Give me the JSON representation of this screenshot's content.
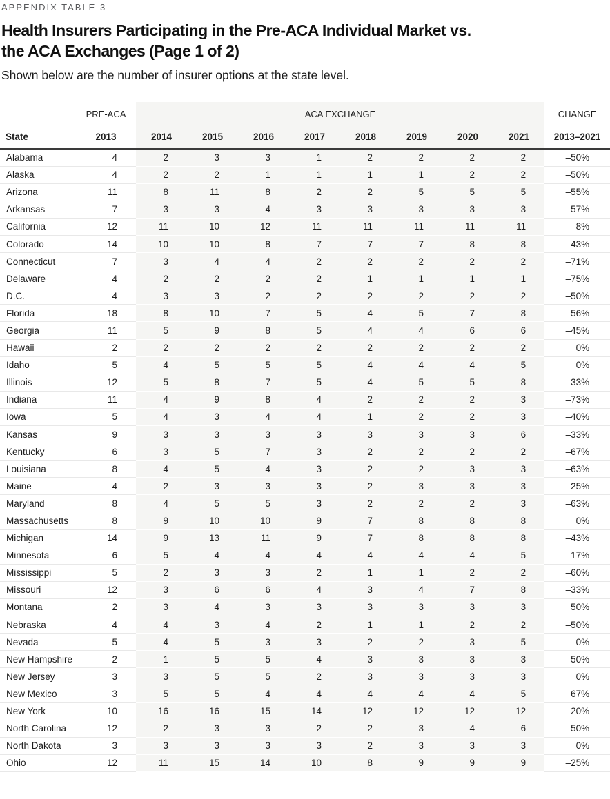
{
  "header": {
    "eyebrow": "APPENDIX TABLE 3",
    "title_line1": "Health Insurers Participating in the Pre-ACA Individual Market vs.",
    "title_line2": "the ACA Exchanges (Page 1 of 2)",
    "subtitle": "Shown below are the number of insurer options at the state level."
  },
  "colors": {
    "band_background": "#f5f5f3",
    "row_divider": "#e8e8e8",
    "header_rule": "#3a3a3a",
    "eyebrow_text": "#58595b"
  },
  "table": {
    "group_headers": {
      "pre_aca": "PRE-ACA",
      "aca_exchange": "ACA EXCHANGE",
      "change": "CHANGE"
    },
    "columns": {
      "state": "State",
      "pre_aca_year": "2013",
      "aca_years": [
        "2014",
        "2015",
        "2016",
        "2017",
        "2018",
        "2019",
        "2020",
        "2021"
      ],
      "change_range": "2013–2021"
    },
    "rows": [
      {
        "state": "Alabama",
        "pre_aca": "4",
        "aca": [
          "2",
          "3",
          "3",
          "1",
          "2",
          "2",
          "2",
          "2"
        ],
        "change": "–50%"
      },
      {
        "state": "Alaska",
        "pre_aca": "4",
        "aca": [
          "2",
          "2",
          "1",
          "1",
          "1",
          "1",
          "2",
          "2"
        ],
        "change": "–50%"
      },
      {
        "state": "Arizona",
        "pre_aca": "11",
        "aca": [
          "8",
          "11",
          "8",
          "2",
          "2",
          "5",
          "5",
          "5"
        ],
        "change": "–55%"
      },
      {
        "state": "Arkansas",
        "pre_aca": "7",
        "aca": [
          "3",
          "3",
          "4",
          "3",
          "3",
          "3",
          "3",
          "3"
        ],
        "change": "–57%"
      },
      {
        "state": "California",
        "pre_aca": "12",
        "aca": [
          "11",
          "10",
          "12",
          "11",
          "11",
          "11",
          "11",
          "11"
        ],
        "change": "–8%"
      },
      {
        "state": "Colorado",
        "pre_aca": "14",
        "aca": [
          "10",
          "10",
          "8",
          "7",
          "7",
          "7",
          "8",
          "8"
        ],
        "change": "–43%"
      },
      {
        "state": "Connecticut",
        "pre_aca": "7",
        "aca": [
          "3",
          "4",
          "4",
          "2",
          "2",
          "2",
          "2",
          "2"
        ],
        "change": "–71%"
      },
      {
        "state": "Delaware",
        "pre_aca": "4",
        "aca": [
          "2",
          "2",
          "2",
          "2",
          "1",
          "1",
          "1",
          "1"
        ],
        "change": "–75%"
      },
      {
        "state": "D.C.",
        "pre_aca": "4",
        "aca": [
          "3",
          "3",
          "2",
          "2",
          "2",
          "2",
          "2",
          "2"
        ],
        "change": "–50%"
      },
      {
        "state": "Florida",
        "pre_aca": "18",
        "aca": [
          "8",
          "10",
          "7",
          "5",
          "4",
          "5",
          "7",
          "8"
        ],
        "change": "–56%"
      },
      {
        "state": "Georgia",
        "pre_aca": "11",
        "aca": [
          "5",
          "9",
          "8",
          "5",
          "4",
          "4",
          "6",
          "6"
        ],
        "change": "–45%"
      },
      {
        "state": "Hawaii",
        "pre_aca": "2",
        "aca": [
          "2",
          "2",
          "2",
          "2",
          "2",
          "2",
          "2",
          "2"
        ],
        "change": "0%"
      },
      {
        "state": "Idaho",
        "pre_aca": "5",
        "aca": [
          "4",
          "5",
          "5",
          "5",
          "4",
          "4",
          "4",
          "5"
        ],
        "change": "0%"
      },
      {
        "state": "Illinois",
        "pre_aca": "12",
        "aca": [
          "5",
          "8",
          "7",
          "5",
          "4",
          "5",
          "5",
          "8"
        ],
        "change": "–33%"
      },
      {
        "state": "Indiana",
        "pre_aca": "11",
        "aca": [
          "4",
          "9",
          "8",
          "4",
          "2",
          "2",
          "2",
          "3"
        ],
        "change": "–73%"
      },
      {
        "state": "Iowa",
        "pre_aca": "5",
        "aca": [
          "4",
          "3",
          "4",
          "4",
          "1",
          "2",
          "2",
          "3"
        ],
        "change": "–40%"
      },
      {
        "state": "Kansas",
        "pre_aca": "9",
        "aca": [
          "3",
          "3",
          "3",
          "3",
          "3",
          "3",
          "3",
          "6"
        ],
        "change": "–33%"
      },
      {
        "state": "Kentucky",
        "pre_aca": "6",
        "aca": [
          "3",
          "5",
          "7",
          "3",
          "2",
          "2",
          "2",
          "2"
        ],
        "change": "–67%"
      },
      {
        "state": "Louisiana",
        "pre_aca": "8",
        "aca": [
          "4",
          "5",
          "4",
          "3",
          "2",
          "2",
          "3",
          "3"
        ],
        "change": "–63%"
      },
      {
        "state": "Maine",
        "pre_aca": "4",
        "aca": [
          "2",
          "3",
          "3",
          "3",
          "2",
          "3",
          "3",
          "3"
        ],
        "change": "–25%"
      },
      {
        "state": "Maryland",
        "pre_aca": "8",
        "aca": [
          "4",
          "5",
          "5",
          "3",
          "2",
          "2",
          "2",
          "3"
        ],
        "change": "–63%"
      },
      {
        "state": "Massachusetts",
        "pre_aca": "8",
        "aca": [
          "9",
          "10",
          "10",
          "9",
          "7",
          "8",
          "8",
          "8"
        ],
        "change": "0%"
      },
      {
        "state": "Michigan",
        "pre_aca": "14",
        "aca": [
          "9",
          "13",
          "11",
          "9",
          "7",
          "8",
          "8",
          "8"
        ],
        "change": "–43%"
      },
      {
        "state": "Minnesota",
        "pre_aca": "6",
        "aca": [
          "5",
          "4",
          "4",
          "4",
          "4",
          "4",
          "4",
          "5"
        ],
        "change": "–17%"
      },
      {
        "state": "Mississippi",
        "pre_aca": "5",
        "aca": [
          "2",
          "3",
          "3",
          "2",
          "1",
          "1",
          "2",
          "2"
        ],
        "change": "–60%"
      },
      {
        "state": "Missouri",
        "pre_aca": "12",
        "aca": [
          "3",
          "6",
          "6",
          "4",
          "3",
          "4",
          "7",
          "8"
        ],
        "change": "–33%"
      },
      {
        "state": "Montana",
        "pre_aca": "2",
        "aca": [
          "3",
          "4",
          "3",
          "3",
          "3",
          "3",
          "3",
          "3"
        ],
        "change": "50%"
      },
      {
        "state": "Nebraska",
        "pre_aca": "4",
        "aca": [
          "4",
          "3",
          "4",
          "2",
          "1",
          "1",
          "2",
          "2"
        ],
        "change": "–50%"
      },
      {
        "state": "Nevada",
        "pre_aca": "5",
        "aca": [
          "4",
          "5",
          "3",
          "3",
          "2",
          "2",
          "3",
          "5"
        ],
        "change": "0%"
      },
      {
        "state": "New Hampshire",
        "pre_aca": "2",
        "aca": [
          "1",
          "5",
          "5",
          "4",
          "3",
          "3",
          "3",
          "3"
        ],
        "change": "50%"
      },
      {
        "state": "New Jersey",
        "pre_aca": "3",
        "aca": [
          "3",
          "5",
          "5",
          "2",
          "3",
          "3",
          "3",
          "3"
        ],
        "change": "0%"
      },
      {
        "state": "New Mexico",
        "pre_aca": "3",
        "aca": [
          "5",
          "5",
          "4",
          "4",
          "4",
          "4",
          "4",
          "5"
        ],
        "change": "67%"
      },
      {
        "state": "New York",
        "pre_aca": "10",
        "aca": [
          "16",
          "16",
          "15",
          "14",
          "12",
          "12",
          "12",
          "12"
        ],
        "change": "20%"
      },
      {
        "state": "North Carolina",
        "pre_aca": "12",
        "aca": [
          "2",
          "3",
          "3",
          "2",
          "2",
          "3",
          "4",
          "6"
        ],
        "change": "–50%"
      },
      {
        "state": "North Dakota",
        "pre_aca": "3",
        "aca": [
          "3",
          "3",
          "3",
          "3",
          "2",
          "3",
          "3",
          "3"
        ],
        "change": "0%"
      },
      {
        "state": "Ohio",
        "pre_aca": "12",
        "aca": [
          "11",
          "15",
          "14",
          "10",
          "8",
          "9",
          "9",
          "9"
        ],
        "change": "–25%"
      }
    ]
  }
}
